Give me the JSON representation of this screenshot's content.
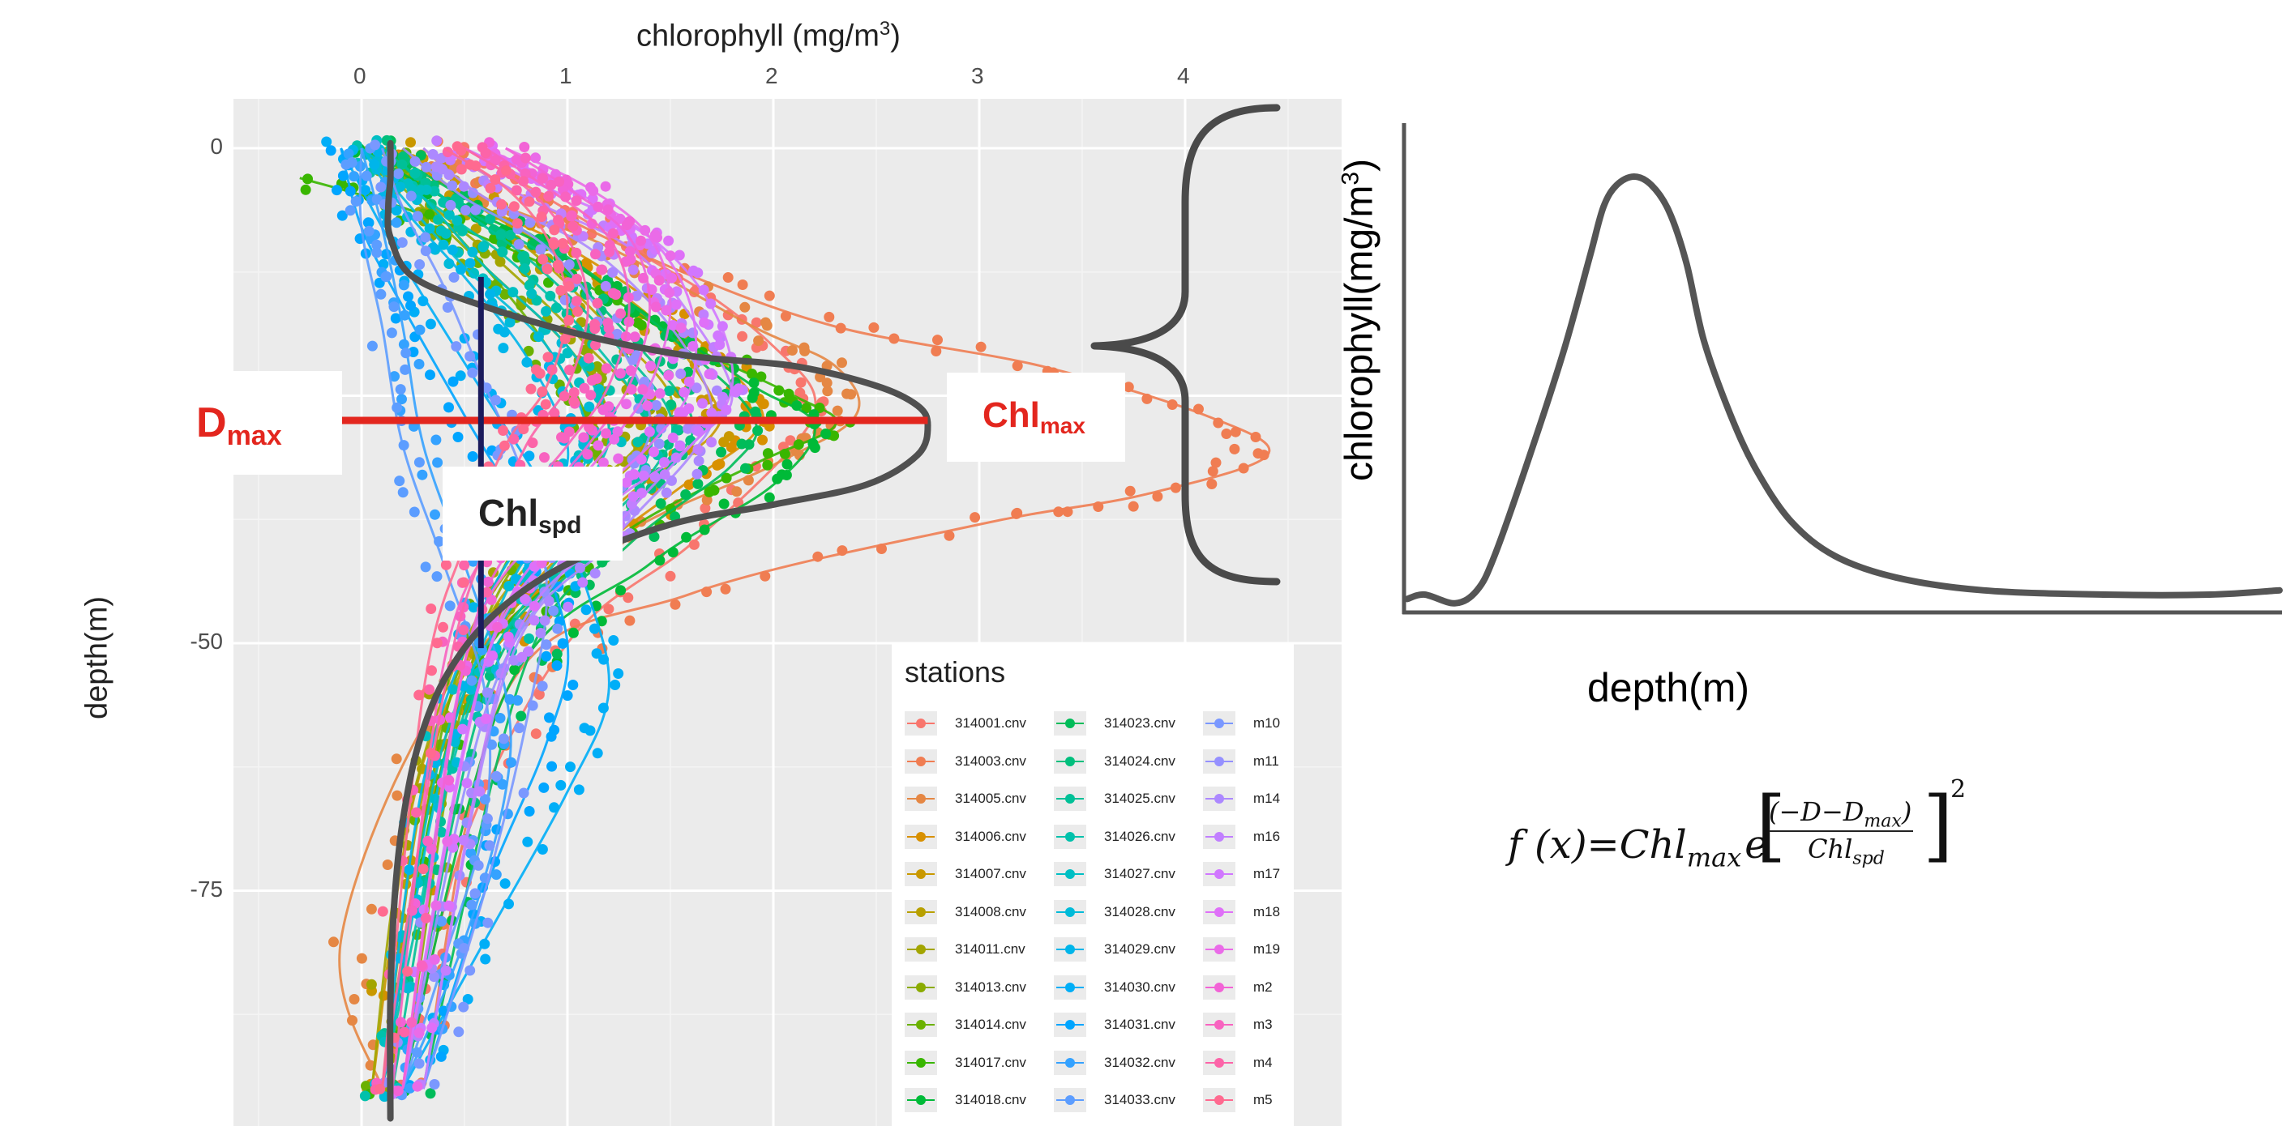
{
  "chart_data": [
    {
      "type": "scatter",
      "title": "",
      "xlabel": "chlorophyll  (mg/m",
      "xlabel_sup": "3",
      "xlabel_close": ")",
      "ylabel": "depth(m)",
      "xlim": [
        -0.5,
        4.8
      ],
      "ylim": [
        -98,
        5
      ],
      "x_ticks": [
        0,
        1,
        2,
        3,
        4
      ],
      "x_tick_labels": [
        "0",
        "1",
        "2",
        "3",
        "4"
      ],
      "y_ticks": [
        0,
        -50,
        -75
      ],
      "y_tick_labels": [
        "0",
        "-50",
        "-75"
      ],
      "panel_bg": "#ebebeb",
      "grid": true,
      "x_axis_position": "top",
      "legend_position": "bottom-right",
      "legend_title": "stations",
      "series": [
        {
          "name": "314001.cnv",
          "color": "#f8766d",
          "x": [
            0.5,
            0.9,
            1.3,
            1.7,
            2.0,
            2.2,
            2.1,
            1.6,
            1.0,
            0.5,
            0.2
          ],
          "y": [
            0,
            -5,
            -10,
            -15,
            -20,
            -25,
            -30,
            -40,
            -50,
            -70,
            -95
          ]
        },
        {
          "name": "314003.cnv",
          "color": "#f07d52",
          "x": [
            0.4,
            0.8,
            1.5,
            2.3,
            3.3,
            4.1,
            4.4,
            3.8,
            3.0,
            1.6,
            0.7,
            0.3
          ],
          "y": [
            0,
            -5,
            -12,
            -18,
            -22,
            -27,
            -31,
            -35,
            -38,
            -45,
            -55,
            -95
          ]
        },
        {
          "name": "314005.cnv",
          "color": "#e58744",
          "x": [
            0.3,
            0.6,
            1.2,
            1.9,
            2.3,
            2.4,
            2.0,
            1.2,
            0.4,
            -0.1,
            0.1
          ],
          "y": [
            0,
            -5,
            -10,
            -18,
            -22,
            -27,
            -32,
            -40,
            -55,
            -80,
            -95
          ]
        },
        {
          "name": "314006.cnv",
          "color": "#d89000",
          "x": [
            0.2,
            0.5,
            1.0,
            1.5,
            1.9,
            1.9,
            1.5,
            0.9,
            0.4,
            0.1
          ],
          "y": [
            0,
            -5,
            -10,
            -17,
            -25,
            -29,
            -35,
            -45,
            -60,
            -95
          ]
        },
        {
          "name": "314007.cnv",
          "color": "#c99800",
          "x": [
            0.2,
            0.5,
            0.9,
            1.4,
            1.7,
            1.7,
            1.3,
            0.8,
            0.3,
            0.05
          ],
          "y": [
            0,
            -5,
            -10,
            -17,
            -25,
            -29,
            -35,
            -45,
            -62,
            -95
          ]
        },
        {
          "name": "314008.cnv",
          "color": "#b8a000",
          "x": [
            0.1,
            0.4,
            0.8,
            1.2,
            1.5,
            1.4,
            1.0,
            0.6,
            0.3,
            0.1
          ],
          "y": [
            0,
            -5,
            -10,
            -18,
            -25,
            -30,
            -38,
            -48,
            -65,
            -95
          ]
        },
        {
          "name": "314011.cnv",
          "color": "#a3a500",
          "x": [
            0.1,
            0.3,
            0.7,
            1.1,
            1.4,
            1.3,
            0.9,
            0.5,
            0.2,
            0.05
          ],
          "y": [
            0,
            -5,
            -12,
            -20,
            -27,
            -31,
            -38,
            -50,
            -70,
            -95
          ]
        },
        {
          "name": "314013.cnv",
          "color": "#8bab00",
          "x": [
            0.0,
            0.3,
            0.6,
            1.0,
            1.2,
            1.1,
            0.8,
            0.5,
            0.2
          ],
          "y": [
            0,
            -6,
            -12,
            -20,
            -27,
            -32,
            -40,
            -55,
            -95
          ]
        },
        {
          "name": "314014.cnv",
          "color": "#6bb100",
          "x": [
            0.1,
            0.3,
            0.6,
            0.9,
            1.1,
            1.0,
            0.7,
            0.4,
            0.1
          ],
          "y": [
            0,
            -5,
            -12,
            -20,
            -28,
            -33,
            -42,
            -58,
            -95
          ]
        },
        {
          "name": "314017.cnv",
          "color": "#39b600",
          "x": [
            -0.3,
            0.2,
            0.7,
            1.2,
            1.6,
            2.1,
            2.3,
            1.9,
            1.2,
            0.5,
            0.1
          ],
          "y": [
            -3,
            -6,
            -10,
            -15,
            -20,
            -25,
            -28,
            -32,
            -40,
            -55,
            -95
          ]
        },
        {
          "name": "314018.cnv",
          "color": "#00ba38",
          "x": [
            0.0,
            0.4,
            0.9,
            1.4,
            1.9,
            2.2,
            2.0,
            1.4,
            0.7,
            0.2
          ],
          "y": [
            0,
            -5,
            -10,
            -17,
            -24,
            -28,
            -34,
            -42,
            -55,
            -95
          ]
        },
        {
          "name": "314023.cnv",
          "color": "#00bc59",
          "x": [
            0.1,
            0.5,
            1.0,
            1.5,
            1.9,
            1.8,
            1.3,
            0.8,
            0.3
          ],
          "y": [
            0,
            -5,
            -11,
            -19,
            -27,
            -32,
            -40,
            -52,
            -95
          ]
        },
        {
          "name": "314024.cnv",
          "color": "#00bf7d",
          "x": [
            0.1,
            0.4,
            0.9,
            1.3,
            1.6,
            1.5,
            1.1,
            0.6,
            0.2
          ],
          "y": [
            0,
            -5,
            -11,
            -19,
            -27,
            -32,
            -41,
            -55,
            -95
          ]
        },
        {
          "name": "314025.cnv",
          "color": "#00c097",
          "x": [
            0.1,
            0.4,
            0.8,
            1.2,
            1.5,
            1.4,
            1.0,
            0.5,
            0.15
          ],
          "y": [
            0,
            -5,
            -11,
            -19,
            -27,
            -33,
            -42,
            -57,
            -95
          ]
        },
        {
          "name": "314026.cnv",
          "color": "#00c1ab",
          "x": [
            0.0,
            0.3,
            0.7,
            1.1,
            1.4,
            1.3,
            0.9,
            0.5,
            0.1
          ],
          "y": [
            0,
            -5,
            -11,
            -19,
            -28,
            -34,
            -43,
            -58,
            -95
          ]
        },
        {
          "name": "314027.cnv",
          "color": "#00bfc4",
          "x": [
            0.0,
            0.3,
            0.6,
            1.0,
            1.2,
            1.1,
            0.8,
            0.4,
            0.1
          ],
          "y": [
            0,
            -5,
            -12,
            -20,
            -28,
            -34,
            -44,
            -60,
            -95
          ]
        },
        {
          "name": "314028.cnv",
          "color": "#00bbd9",
          "x": [
            0.0,
            0.2,
            0.5,
            0.9,
            1.1,
            1.0,
            0.7,
            0.4,
            0.1
          ],
          "y": [
            0,
            -5,
            -12,
            -20,
            -29,
            -35,
            -45,
            -62,
            -95
          ]
        },
        {
          "name": "314029.cnv",
          "color": "#00b5ea",
          "x": [
            0.0,
            0.2,
            0.5,
            0.8,
            1.0,
            0.9,
            0.6,
            0.3,
            0.1
          ],
          "y": [
            0,
            -6,
            -13,
            -21,
            -30,
            -36,
            -46,
            -64,
            -95
          ]
        },
        {
          "name": "314030.cnv",
          "color": "#00aef7",
          "x": [
            -0.1,
            0.1,
            0.3,
            0.6,
            0.9,
            1.1,
            1.2,
            1.0,
            0.6,
            0.2
          ],
          "y": [
            0,
            -8,
            -15,
            -25,
            -35,
            -45,
            -55,
            -65,
            -80,
            -95
          ]
        },
        {
          "name": "314031.cnv",
          "color": "#00a5ff",
          "x": [
            -0.1,
            0.0,
            0.2,
            0.5,
            0.8,
            1.0,
            0.9,
            0.6,
            0.3
          ],
          "y": [
            0,
            -8,
            -16,
            -27,
            -38,
            -50,
            -60,
            -75,
            -95
          ]
        },
        {
          "name": "314032.cnv",
          "color": "#35a2ff",
          "x": [
            0.0,
            0.1,
            0.2,
            0.3,
            0.5,
            0.7,
            0.7,
            0.5,
            0.2
          ],
          "y": [
            0,
            -8,
            -18,
            -30,
            -42,
            -55,
            -65,
            -80,
            -95
          ]
        },
        {
          "name": "314033.cnv",
          "color": "#5c9dff",
          "x": [
            0.0,
            0.0,
            0.1,
            0.2,
            0.4,
            0.6,
            0.6,
            0.4,
            0.2
          ],
          "y": [
            0,
            -8,
            -18,
            -30,
            -42,
            -55,
            -68,
            -82,
            -95
          ]
        },
        {
          "name": "m10",
          "color": "#7a98ff",
          "x": [
            0.1,
            0.2,
            0.4,
            0.6,
            0.8,
            0.9,
            0.8,
            0.6,
            0.3
          ],
          "y": [
            0,
            -6,
            -14,
            -24,
            -34,
            -45,
            -58,
            -75,
            -95
          ]
        },
        {
          "name": "m11",
          "color": "#9590ff",
          "x": [
            0.2,
            0.5,
            0.9,
            1.2,
            1.4,
            1.3,
            1.0,
            0.6,
            0.2
          ],
          "y": [
            0,
            -5,
            -10,
            -18,
            -27,
            -33,
            -42,
            -57,
            -95
          ]
        },
        {
          "name": "m14",
          "color": "#ac88ff",
          "x": [
            0.3,
            0.6,
            1.1,
            1.5,
            1.7,
            1.6,
            1.2,
            0.7,
            0.3
          ],
          "y": [
            0,
            -5,
            -10,
            -18,
            -26,
            -31,
            -40,
            -53,
            -95
          ]
        },
        {
          "name": "m16",
          "color": "#c17fff",
          "x": [
            0.4,
            0.8,
            1.3,
            1.6,
            1.8,
            1.6,
            1.2,
            0.7,
            0.3
          ],
          "y": [
            0,
            -5,
            -10,
            -17,
            -25,
            -30,
            -39,
            -52,
            -95
          ]
        },
        {
          "name": "m17",
          "color": "#d177ff",
          "x": [
            0.5,
            0.9,
            1.4,
            1.7,
            1.8,
            1.6,
            1.1,
            0.6,
            0.2
          ],
          "y": [
            0,
            -4,
            -9,
            -16,
            -24,
            -30,
            -38,
            -52,
            -95
          ]
        },
        {
          "name": "m18",
          "color": "#df70f8",
          "x": [
            0.6,
            1.0,
            1.4,
            1.6,
            1.6,
            1.4,
            1.0,
            0.6,
            0.2
          ],
          "y": [
            0,
            -4,
            -9,
            -16,
            -24,
            -30,
            -38,
            -52,
            -95
          ]
        },
        {
          "name": "m19",
          "color": "#ea6be8",
          "x": [
            0.7,
            1.1,
            1.4,
            1.5,
            1.4,
            1.2,
            0.9,
            0.5,
            0.2
          ],
          "y": [
            0,
            -4,
            -9,
            -16,
            -24,
            -30,
            -38,
            -52,
            -95
          ]
        },
        {
          "name": "m2",
          "color": "#f263d6",
          "x": [
            0.7,
            1.0,
            1.3,
            1.4,
            1.3,
            1.1,
            0.8,
            0.5,
            0.2
          ],
          "y": [
            0,
            -4,
            -9,
            -16,
            -24,
            -30,
            -38,
            -52,
            -95
          ]
        },
        {
          "name": "m3",
          "color": "#f863c0",
          "x": [
            0.6,
            0.9,
            1.2,
            1.3,
            1.2,
            1.0,
            0.7,
            0.4,
            0.15
          ],
          "y": [
            0,
            -4,
            -9,
            -16,
            -24,
            -30,
            -38,
            -52,
            -95
          ]
        },
        {
          "name": "m4",
          "color": "#fc64a8",
          "x": [
            0.5,
            0.8,
            1.0,
            1.1,
            1.0,
            0.8,
            0.6,
            0.4,
            0.1
          ],
          "y": [
            0,
            -4,
            -9,
            -16,
            -24,
            -30,
            -40,
            -55,
            -95
          ]
        },
        {
          "name": "m5",
          "color": "#ff6a90",
          "x": [
            0.4,
            0.7,
            0.9,
            1.0,
            0.9,
            0.7,
            0.5,
            0.3,
            0.1
          ],
          "y": [
            0,
            -4,
            -9,
            -16,
            -24,
            -30,
            -40,
            -55,
            -95
          ]
        }
      ],
      "fit_curve": {
        "color": "#505050",
        "x": [
          0.14,
          0.14,
          0.13,
          0.14,
          0.25,
          0.6,
          1.1,
          1.6,
          2.1,
          2.5,
          2.7,
          2.75,
          2.7,
          2.45,
          2.0,
          1.5,
          1.0,
          0.65,
          0.42,
          0.28,
          0.2,
          0.16,
          0.14,
          0.14
        ],
        "y": [
          0.5,
          -3,
          -6,
          -9,
          -13,
          -16,
          -19,
          -21,
          -22,
          -24,
          -26,
          -28,
          -31,
          -34,
          -36,
          -38,
          -42,
          -47,
          -53,
          -60,
          -68,
          -76,
          -86,
          -98
        ]
      },
      "marker_lines": {
        "dmax_depth": -27.5,
        "dmax_x_range": [
          -0.1,
          2.75
        ],
        "dmax_color": "#e3261e",
        "chlspd_x": 0.58,
        "chlspd_depth_range": [
          -13,
          -50.5
        ],
        "chlspd_color": "#1b1b5c"
      },
      "annotations": {
        "dmax_main": "D",
        "dmax_sub": "max",
        "chlmax_main": "Chl",
        "chlmax_sub": "max",
        "chlspd_main": "Chl",
        "chlspd_sub": "spd"
      }
    },
    {
      "type": "line",
      "title": "",
      "xlabel": "depth(m)",
      "ylabel": "chlorophyll(mg/m",
      "ylabel_sup": "3",
      "ylabel_close": ")",
      "x_ticks": [],
      "y_ticks": [],
      "grid": false,
      "line_color": "#555555",
      "x": [
        0.0,
        0.02,
        0.055,
        0.08,
        0.1,
        0.14,
        0.18,
        0.21,
        0.225,
        0.24,
        0.26,
        0.28,
        0.3,
        0.32,
        0.34,
        0.37,
        0.4,
        0.44,
        0.49,
        0.56,
        0.66,
        0.8,
        0.92,
        1.0
      ],
      "y": [
        0.02,
        0.03,
        0.01,
        0.04,
        0.12,
        0.35,
        0.6,
        0.82,
        0.93,
        0.98,
        1.0,
        0.98,
        0.92,
        0.8,
        0.62,
        0.45,
        0.32,
        0.2,
        0.12,
        0.07,
        0.04,
        0.03,
        0.03,
        0.04
      ]
    }
  ],
  "brace": {
    "color": "#4a4a4a"
  },
  "formula": {
    "lhs": "f (x)=Chl",
    "lhs_sub": "max",
    "base": "e",
    "numerator": "(−D−D",
    "numerator_sub": "max",
    "numerator_close": ")",
    "denominator": "Chl",
    "denominator_sub": "spd",
    "exponent": "2"
  }
}
